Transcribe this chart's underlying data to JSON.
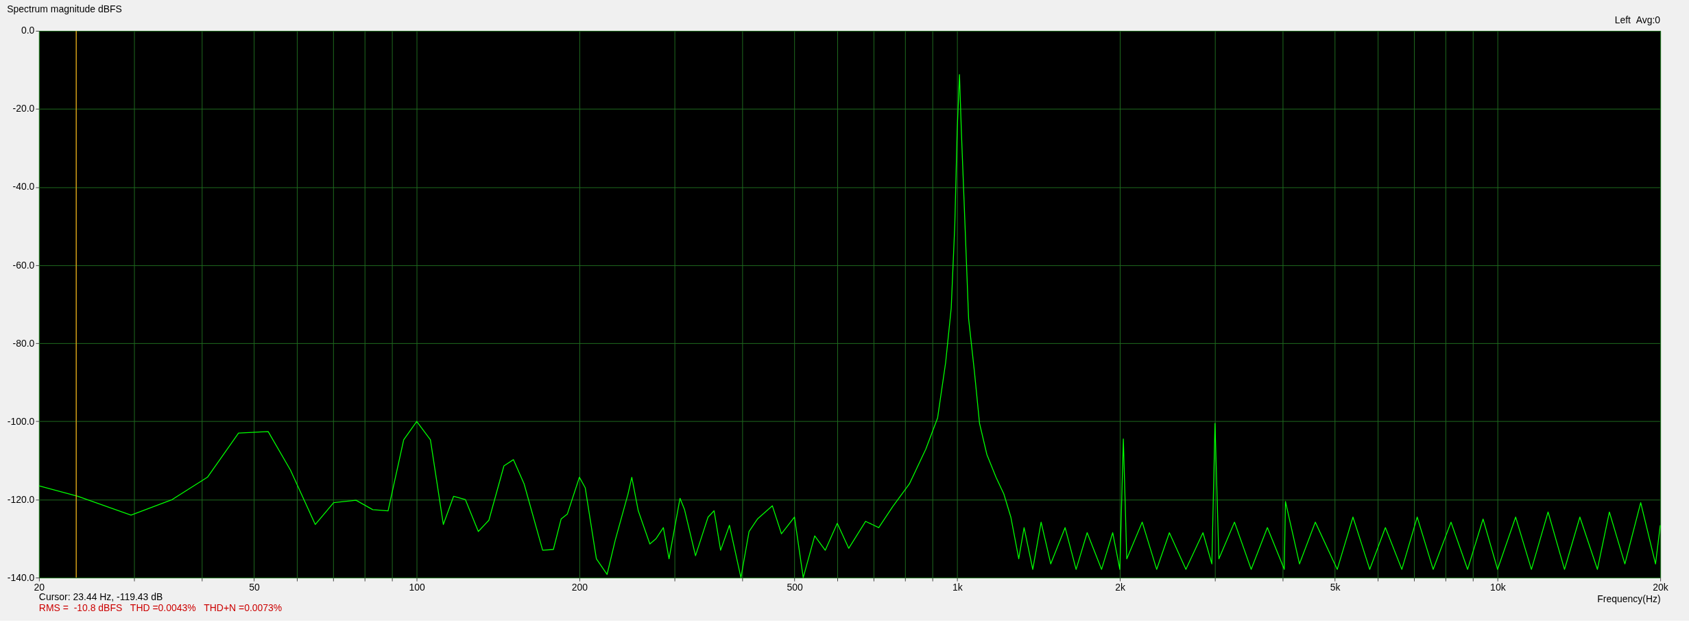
{
  "chart_data": {
    "type": "line",
    "title": "Spectrum magnitude dBFS",
    "xlabel": "Frequency(Hz)",
    "annotations": [
      "Left  Avg:0",
      "Cursor: 23.44 Hz, -119.43 dB",
      "RMS =  -10.8 dBFS   THD =0.0043%   THD+N =0.0073%"
    ],
    "log": "x",
    "grid": true,
    "marker": "none",
    "line_style": "solid",
    "xlim": [
      20,
      20000
    ],
    "ylim": [
      -140,
      0
    ],
    "xticks": [
      20,
      {
        "value": 30,
        "label": null
      },
      {
        "value": 40,
        "label": null
      },
      50,
      {
        "value": 60,
        "label": null
      },
      {
        "value": 70,
        "label": null
      },
      {
        "value": 80,
        "label": null
      },
      {
        "value": 90,
        "label": null
      },
      100,
      200,
      {
        "value": 300,
        "label": null
      },
      {
        "value": 400,
        "label": null
      },
      500,
      {
        "value": 600,
        "label": null
      },
      {
        "value": 700,
        "label": null
      },
      {
        "value": 800,
        "label": null
      },
      {
        "value": 900,
        "label": null
      },
      {
        "value": 1000,
        "label": "1k"
      },
      {
        "value": 2000,
        "label": "2k"
      },
      {
        "value": 3000,
        "label": null
      },
      {
        "value": 4000,
        "label": null
      },
      {
        "value": 5000,
        "label": "5k"
      },
      {
        "value": 6000,
        "label": null
      },
      {
        "value": 7000,
        "label": null
      },
      {
        "value": 8000,
        "label": null
      },
      {
        "value": 9000,
        "label": null
      },
      {
        "value": 10000,
        "label": "10k"
      },
      {
        "value": 20000,
        "label": "20k"
      }
    ],
    "yticks": [
      {
        "value": -140,
        "label": "-140.0"
      },
      {
        "value": -120,
        "label": "-120.0"
      },
      {
        "value": -100,
        "label": "-100.0"
      },
      {
        "value": -80,
        "label": "-80.0"
      },
      {
        "value": -60,
        "label": "-60.0"
      },
      {
        "value": -40,
        "label": "-40.0"
      },
      {
        "value": -20,
        "label": "-20.0"
      },
      {
        "value": 0,
        "label": "0.0"
      }
    ],
    "ref_lines": [
      {
        "axis": "x",
        "value": 23.44,
        "color": "#d4a017"
      }
    ],
    "series": [
      {
        "color": "#00ff00",
        "x": [
          20,
          23.6,
          29.6,
          35.3,
          41,
          46.8,
          53.1,
          58.4,
          64.9,
          70.2,
          77.2,
          82.9,
          88.5,
          94.6,
          100,
          106,
          112,
          117,
          123,
          130,
          136,
          145,
          151,
          158,
          171,
          179,
          185,
          190,
          200,
          205,
          215,
          225,
          233,
          246,
          250,
          257,
          270,
          277,
          286,
          293,
          307,
          313,
          328,
          346,
          355,
          365,
          379,
          398,
          412,
          427,
          455,
          473,
          500,
          519,
          545,
          570,
          600,
          630,
          677,
          716,
          760,
          816,
          875,
          920,
          952,
          975,
          990,
          1000,
          1010,
          1018,
          1034,
          1050,
          1076,
          1100,
          1135,
          1180,
          1220,
          1257,
          1300,
          1330,
          1380,
          1430,
          1490,
          1584,
          1660,
          1740,
          1850,
          1940,
          2000,
          2030,
          2060,
          2200,
          2340,
          2470,
          2650,
          2850,
          2960,
          3000,
          3050,
          3260,
          3500,
          3750,
          4030,
          4050,
          4300,
          4600,
          5050,
          5400,
          5800,
          6200,
          6650,
          7100,
          7600,
          8200,
          8800,
          9400,
          10000,
          10800,
          11550,
          12400,
          13300,
          14200,
          15300,
          16100,
          17200,
          18400,
          19600,
          20000
        ],
        "values": [
          -116.5,
          -119.2,
          -124,
          -120,
          -114.3,
          -103,
          -102.6,
          -112.5,
          -126.4,
          -120.8,
          -120.2,
          -122.6,
          -122.9,
          -104.7,
          -100,
          -104.7,
          -126.4,
          -119.2,
          -120,
          -128.2,
          -125.3,
          -111.4,
          -109.8,
          -116,
          -133,
          -132.8,
          -125,
          -123.7,
          -114.3,
          -117,
          -135.2,
          -139.2,
          -130.4,
          -118.6,
          -114.3,
          -122.9,
          -131.4,
          -130.1,
          -127.2,
          -135.2,
          -119.7,
          -122.6,
          -134.4,
          -124.5,
          -122.9,
          -133,
          -126.6,
          -140,
          -128.2,
          -125,
          -121.6,
          -128.8,
          -124.5,
          -140,
          -129.3,
          -133,
          -126.1,
          -132.5,
          -125.6,
          -127.2,
          -121.8,
          -116,
          -107.1,
          -99.1,
          -85,
          -71,
          -49.7,
          -25.6,
          -11.2,
          -25.6,
          -49.7,
          -73.7,
          -87.1,
          -100.5,
          -108.5,
          -114.3,
          -118.6,
          -124.5,
          -135.2,
          -127.2,
          -137.9,
          -125.8,
          -136.5,
          -127.2,
          -137.9,
          -128.5,
          -137.9,
          -128.5,
          -137.9,
          -104.5,
          -135.2,
          -125.8,
          -137.9,
          -128.5,
          -137.9,
          -128.5,
          -136.5,
          -100.5,
          -135.2,
          -125.8,
          -137.9,
          -127.2,
          -137.9,
          -120.5,
          -136.5,
          -125.8,
          -137.9,
          -124.5,
          -137.9,
          -127.2,
          -137.9,
          -124.5,
          -137.9,
          -125.8,
          -137.9,
          -125,
          -137.9,
          -124.5,
          -137.9,
          -123.2,
          -137.9,
          -124.5,
          -137.9,
          -123.2,
          -136.5,
          -120.8,
          -136.5,
          -126.6
        ]
      }
    ]
  }
}
